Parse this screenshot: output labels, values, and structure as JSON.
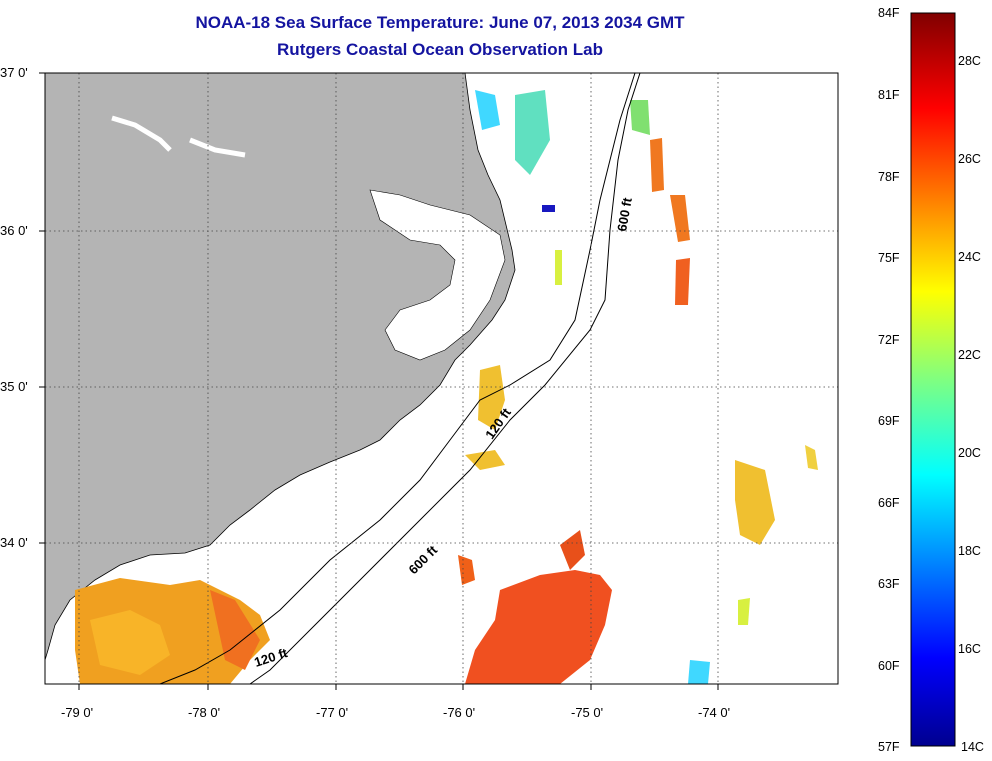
{
  "title": "NOAA-18 Sea Surface Temperature:  June 07, 2013 2034 GMT",
  "subtitle": "Rutgers Coastal Ocean Observation Lab",
  "colors": {
    "title": "#1414a0",
    "land": "#b4b4b4",
    "background": "#ffffff",
    "gridline": "#000000"
  },
  "map": {
    "lon_range": [
      -79.3,
      -73.1
    ],
    "lat_range": [
      33.1,
      37.0
    ],
    "lon_ticks": [
      "-79 0'",
      "-78 0'",
      "-77 0'",
      "-76 0'",
      "-75 0'",
      "-74 0'"
    ],
    "lat_ticks": [
      "37 0'",
      "36 0'",
      "35 0'",
      "34 0'"
    ],
    "grid": true,
    "contour_labels": [
      "600 ft",
      "120 ft",
      "600 ft",
      "120 ft"
    ]
  },
  "colorbar": {
    "fahrenheit_labels": [
      "84F",
      "81F",
      "78F",
      "75F",
      "72F",
      "69F",
      "66F",
      "63F",
      "60F",
      "57F"
    ],
    "celsius_labels": [
      "28C",
      "26C",
      "24C",
      "22C",
      "20C",
      "18C",
      "16C",
      "14C"
    ],
    "range_celsius": [
      14,
      29
    ],
    "colormap": "jet"
  }
}
